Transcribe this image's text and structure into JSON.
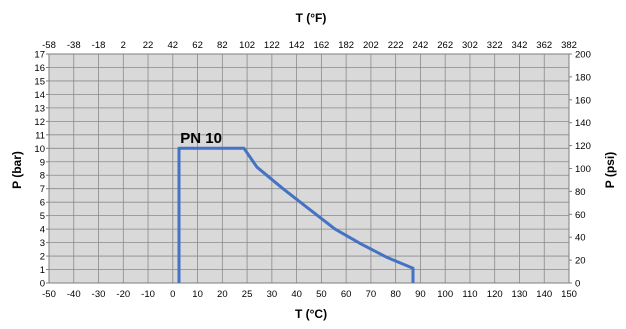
{
  "chart_data": {
    "type": "line",
    "title": "",
    "xlabel": "T (°C)",
    "x2label": "T (°F)",
    "ylabel": "P (bar)",
    "y2label": "P (psi)",
    "xlim": [
      -50,
      150
    ],
    "ylim": [
      0,
      17
    ],
    "x2lim": [
      -58,
      382
    ],
    "y2lim": [
      0,
      200
    ],
    "x_ticks": [
      "-50",
      "-40",
      "-30",
      "-20",
      "-10",
      "0",
      "10",
      "20",
      "25",
      "30",
      "40",
      "50",
      "60",
      "70",
      "80",
      "90",
      "100",
      "110",
      "120",
      "130",
      "140",
      "150"
    ],
    "x2_ticks": [
      "-58",
      "-38",
      "-18",
      "2",
      "22",
      "42",
      "62",
      "82",
      "102",
      "122",
      "142",
      "162",
      "182",
      "202",
      "222",
      "242",
      "262",
      "302",
      "322",
      "342",
      "362",
      "382"
    ],
    "y_ticks": [
      "0",
      "1",
      "2",
      "3",
      "4",
      "5",
      "6",
      "7",
      "8",
      "9",
      "10",
      "11",
      "12",
      "13",
      "14",
      "15",
      "16",
      "17"
    ],
    "y2_ticks": [
      "0",
      "20",
      "40",
      "60",
      "80",
      "100",
      "120",
      "140",
      "160",
      "180",
      "200"
    ],
    "grid": true,
    "background": "#d9d9d9",
    "series": [
      {
        "name": "PN 10",
        "color": "#4472c4",
        "x": [
          0,
          0,
          25,
          30,
          40,
          50,
          60,
          70,
          80,
          90,
          90
        ],
        "y": [
          0,
          10,
          10,
          8.6,
          7,
          5.5,
          4,
          2.9,
          1.9,
          1.1,
          0
        ]
      }
    ],
    "annotations": [
      {
        "text": "PN 10",
        "x": 0.5,
        "y": 10.4
      }
    ]
  }
}
